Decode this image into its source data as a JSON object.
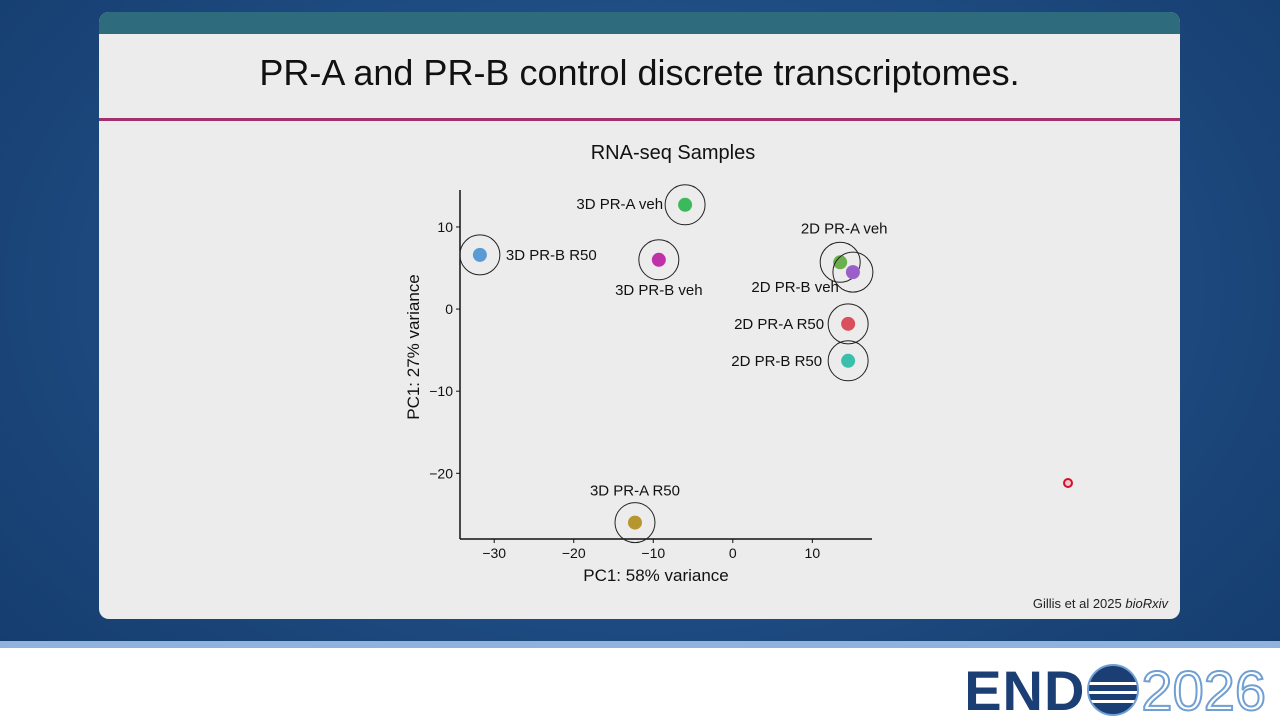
{
  "slide_title": "PR-A and PR-B control discrete transcriptomes.",
  "citation": {
    "text": "Gillis et al 2025",
    "journal": "bioRxiv"
  },
  "logo": {
    "word": "END",
    "year": "2026"
  },
  "chart_data": {
    "type": "scatter",
    "title": "RNA-seq Samples",
    "x_label": "PC1: 58% variance",
    "y_label": "PC1: 27% variance",
    "xlim": [
      -34.3,
      17.5
    ],
    "ylim": [
      -28.0,
      14.5
    ],
    "xticks": [
      {
        "value": -30,
        "label": "−30"
      },
      {
        "value": -20,
        "label": "−20"
      },
      {
        "value": -10,
        "label": "−10"
      },
      0,
      10
    ],
    "yticks": [
      10,
      0,
      {
        "value": -10,
        "label": "−10"
      },
      {
        "value": -20,
        "label": "−20"
      }
    ],
    "series": [
      {
        "name": "3D PR-A veh",
        "color": "#3cb95a",
        "x": -6.0,
        "y": 12.7
      },
      {
        "name": "3D PR-B R50",
        "color": "#5b9bd5",
        "x": -31.8,
        "y": 6.6
      },
      {
        "name": "3D PR-B veh",
        "color": "#c030a8",
        "x": -9.3,
        "y": 6.0
      },
      {
        "name": "2D PR-A veh",
        "color": "#6ab04c",
        "x": 13.5,
        "y": 5.7
      },
      {
        "name": "2D PR-B veh",
        "color": "#9a5fc8",
        "x": 15.1,
        "y": 4.5
      },
      {
        "name": "2D PR-A R50",
        "color": "#d94f5c",
        "x": 14.5,
        "y": -1.8
      },
      {
        "name": "2D PR-B R50",
        "color": "#3bbfad",
        "x": 14.5,
        "y": -6.3
      },
      {
        "name": "3D PR-A R50",
        "color": "#b8962e",
        "x": -12.3,
        "y": -26.0
      }
    ]
  }
}
